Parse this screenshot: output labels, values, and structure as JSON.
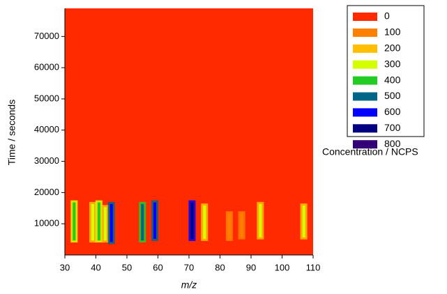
{
  "chart_data": {
    "type": "heatmap",
    "xlabel": "m/z",
    "ylabel": "Time / seconds",
    "xlim": [
      30,
      110
    ],
    "xticks": [
      30,
      40,
      50,
      60,
      70,
      80,
      90,
      100,
      110
    ],
    "ylim": [
      0,
      79000
    ],
    "yticks": [
      10000,
      20000,
      30000,
      40000,
      50000,
      60000,
      70000
    ],
    "legend_title": "Concentration / NCPS",
    "levels": [
      0,
      100,
      200,
      300,
      400,
      500,
      600,
      700,
      800
    ],
    "colors": [
      "#ff2a00",
      "#ff7f00",
      "#ffbf00",
      "#d4ff00",
      "#22cc22",
      "#006688",
      "#0000ff",
      "#000080",
      "#330077"
    ],
    "x": [
      33,
      39,
      41,
      43,
      45,
      55,
      59,
      71,
      75,
      83,
      87,
      93,
      107
    ],
    "y_start": [
      4000,
      4000,
      4000,
      4000,
      3500,
      4000,
      4500,
      4500,
      4500,
      4500,
      5000,
      5000,
      5000
    ],
    "y_end": [
      17500,
      17000,
      17500,
      16000,
      17000,
      17000,
      17500,
      17500,
      16500,
      14000,
      14000,
      17000,
      16500
    ],
    "values": [
      400,
      300,
      400,
      300,
      600,
      500,
      600,
      700,
      300,
      100,
      100,
      300,
      300
    ]
  }
}
